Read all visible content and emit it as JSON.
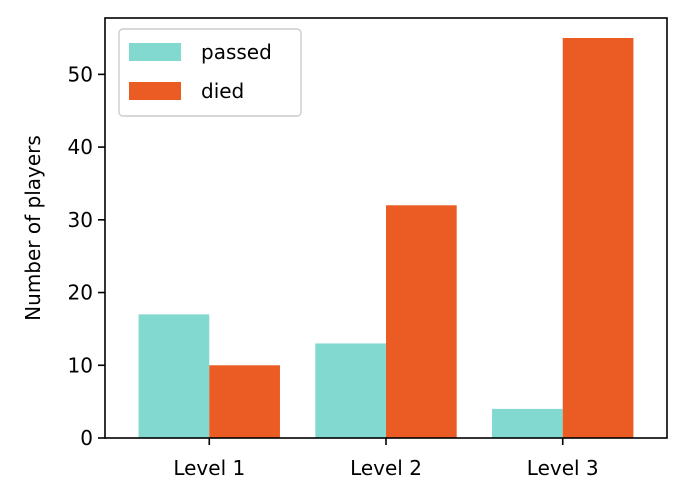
{
  "chart_data": {
    "type": "bar",
    "title": "",
    "xlabel": "",
    "ylabel": "Number of players",
    "categories": [
      "Level 1",
      "Level 2",
      "Level 3"
    ],
    "series": [
      {
        "name": "passed",
        "values": [
          17,
          13,
          4
        ],
        "color": "#82D9D0"
      },
      {
        "name": "died",
        "values": [
          10,
          32,
          55
        ],
        "color": "#EB5C24"
      }
    ],
    "ylim": [
      0,
      57.75
    ],
    "yticks": [
      0,
      10,
      20,
      30,
      40,
      50
    ],
    "grid": false,
    "legend_position": "upper-left"
  }
}
